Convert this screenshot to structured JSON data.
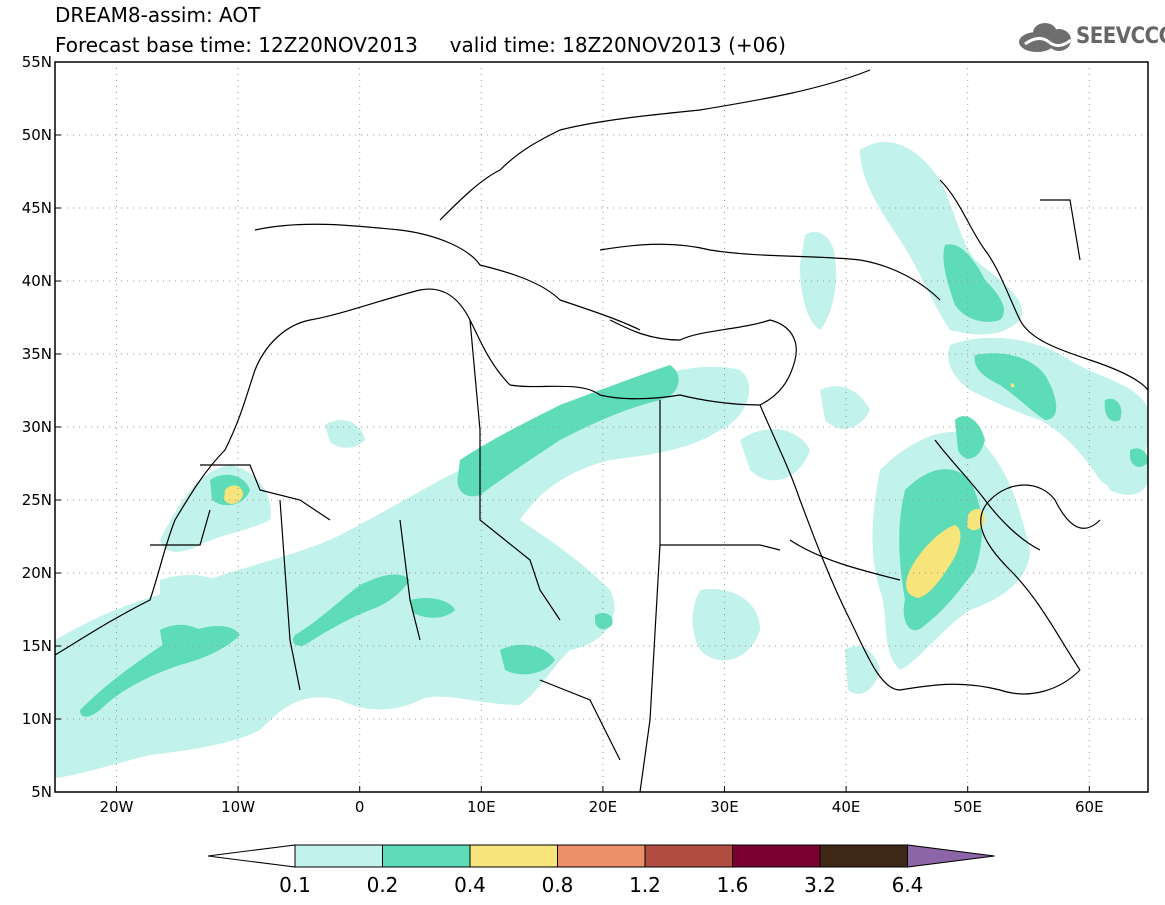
{
  "header": {
    "title": "DREAM8-assim: AOT",
    "base_time_label": "Forecast base time: 12Z20NOV2013",
    "valid_time_label": "valid time: 18Z20NOV2013 (+06)",
    "logo_text": "SEEVCCC"
  },
  "map": {
    "lat_ticks": [
      "55N",
      "50N",
      "45N",
      "40N",
      "35N",
      "30N",
      "25N",
      "20N",
      "15N",
      "10N",
      "5N"
    ],
    "lon_ticks": [
      "20W",
      "10W",
      "0",
      "10E",
      "20E",
      "30E",
      "40E",
      "50E",
      "60E"
    ]
  },
  "colorbar": {
    "labels": [
      "0.1",
      "0.2",
      "0.4",
      "0.8",
      "1.2",
      "1.6",
      "3.2",
      "6.4"
    ],
    "colors": [
      "#c2f2ec",
      "#5edcb8",
      "#f7e47a",
      "#eb9068",
      "#b04c40",
      "#7a0030",
      "#402818",
      "#8c64a8"
    ]
  }
}
